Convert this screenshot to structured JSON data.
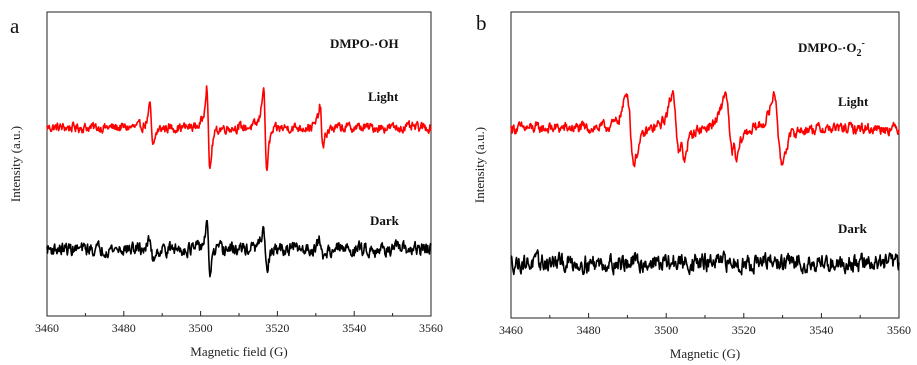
{
  "chart_data": [
    {
      "type": "line",
      "panel_label": "a",
      "title": "DMPO-·OH",
      "title_sub": "",
      "title_sup": "",
      "xlabel": "Magnetic field (G)",
      "ylabel": "Intensity (a.u.)",
      "xlim": [
        3460,
        3560
      ],
      "x_ticks": [
        3460,
        3480,
        3500,
        3520,
        3540,
        3560
      ],
      "y_ticks_shown": false,
      "grid": false,
      "series": [
        {
          "name": "Light",
          "color": "#ff0000",
          "baseline": 0.62,
          "noise": 0.022,
          "peaks": [
            {
              "x": 3487.2,
              "amp": 0.27,
              "width": 0.7
            },
            {
              "x": 3502.0,
              "amp": 0.55,
              "width": 0.7
            },
            {
              "x": 3516.8,
              "amp": 0.55,
              "width": 0.7
            },
            {
              "x": 3531.5,
              "amp": 0.27,
              "width": 0.7
            }
          ]
        },
        {
          "name": "Dark",
          "color": "#000000",
          "baseline": 0.22,
          "noise": 0.03,
          "peaks": [
            {
              "x": 3487.2,
              "amp": 0.12,
              "width": 0.7
            },
            {
              "x": 3502.0,
              "amp": 0.3,
              "width": 0.7
            },
            {
              "x": 3516.8,
              "amp": 0.3,
              "width": 0.7
            },
            {
              "x": 3531.5,
              "amp": 0.12,
              "width": 0.7
            }
          ]
        }
      ]
    },
    {
      "type": "line",
      "panel_label": "b",
      "title": "DMPO-·O",
      "title_sub": "2",
      "title_sup": "-",
      "xlabel": "Magnetic (G)",
      "ylabel": "Intensity (a.u.)",
      "xlim": [
        3460,
        3560
      ],
      "x_ticks": [
        3460,
        3480,
        3500,
        3520,
        3540,
        3560
      ],
      "y_ticks_shown": false,
      "grid": false,
      "series": [
        {
          "name": "Light",
          "color": "#ff0000",
          "baseline": 0.62,
          "noise": 0.025,
          "peaks": [
            {
              "x": 3490.8,
              "amp": 0.45,
              "width": 1.6
            },
            {
              "x": 3502.6,
              "amp": 0.45,
              "width": 1.6
            },
            {
              "x": 3504.3,
              "amp": 0.17,
              "width": 0.8
            },
            {
              "x": 3516.2,
              "amp": 0.45,
              "width": 1.6
            },
            {
              "x": 3517.8,
              "amp": 0.17,
              "width": 0.8
            },
            {
              "x": 3528.8,
              "amp": 0.45,
              "width": 1.6
            }
          ]
        },
        {
          "name": "Dark",
          "color": "#000000",
          "baseline": 0.18,
          "noise": 0.04,
          "peaks": []
        }
      ]
    }
  ]
}
